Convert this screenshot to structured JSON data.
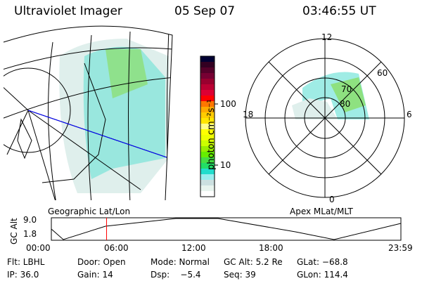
{
  "header": {
    "instrument": "Ultraviolet Imager",
    "date": "05 Sep 07",
    "time": "03:46:55 UT"
  },
  "colorbar": {
    "unit_label": "photon cm⁻²s⁻¹",
    "tick_100": "100",
    "tick_10": "10",
    "colors": [
      "#000033",
      "#330022",
      "#55002a",
      "#770033",
      "#99002f",
      "#bb0033",
      "#dd0033",
      "#ff0000",
      "#ff7700",
      "#ffaa00",
      "#ffcc00",
      "#ffe600",
      "#ffff88",
      "#ffff00",
      "#eeff00",
      "#ccff00",
      "#99ee00",
      "#66ee00",
      "#44dd44",
      "#22dd66",
      "#22ddcc",
      "#99eeee",
      "#cce0e0",
      "#e8f4ee",
      "#ffffff"
    ]
  },
  "left_map": {
    "label": "Geographic Lat/Lon"
  },
  "polar": {
    "label": "Apex MLat/MLT",
    "mlt_12": "12",
    "mlt_18": "18",
    "mlt_6": "6",
    "mlt_0": "0",
    "lat_60": "60",
    "lat_70": "70",
    "lat_80": "80"
  },
  "altitude_plot": {
    "ylabel": "GC Alt",
    "ymax": "9.0",
    "ymin": "1.8",
    "xticks": [
      "00:00",
      "06:00",
      "12:00",
      "18:00",
      "23:59"
    ],
    "current_time_fraction": 0.158
  },
  "info": {
    "filter": "Flt: LBHL",
    "door": "Door: Open",
    "mode": "Mode: Normal",
    "gc_alt": "GC Alt: 5.2 Re",
    "glat": "GLat: −68.8",
    "ip": "IP: 36.0",
    "gain": "Gain: 14",
    "dsp": "Dsp:    −5.4",
    "seq": "Seq: 39",
    "glon": "GLon: 114.4"
  }
}
